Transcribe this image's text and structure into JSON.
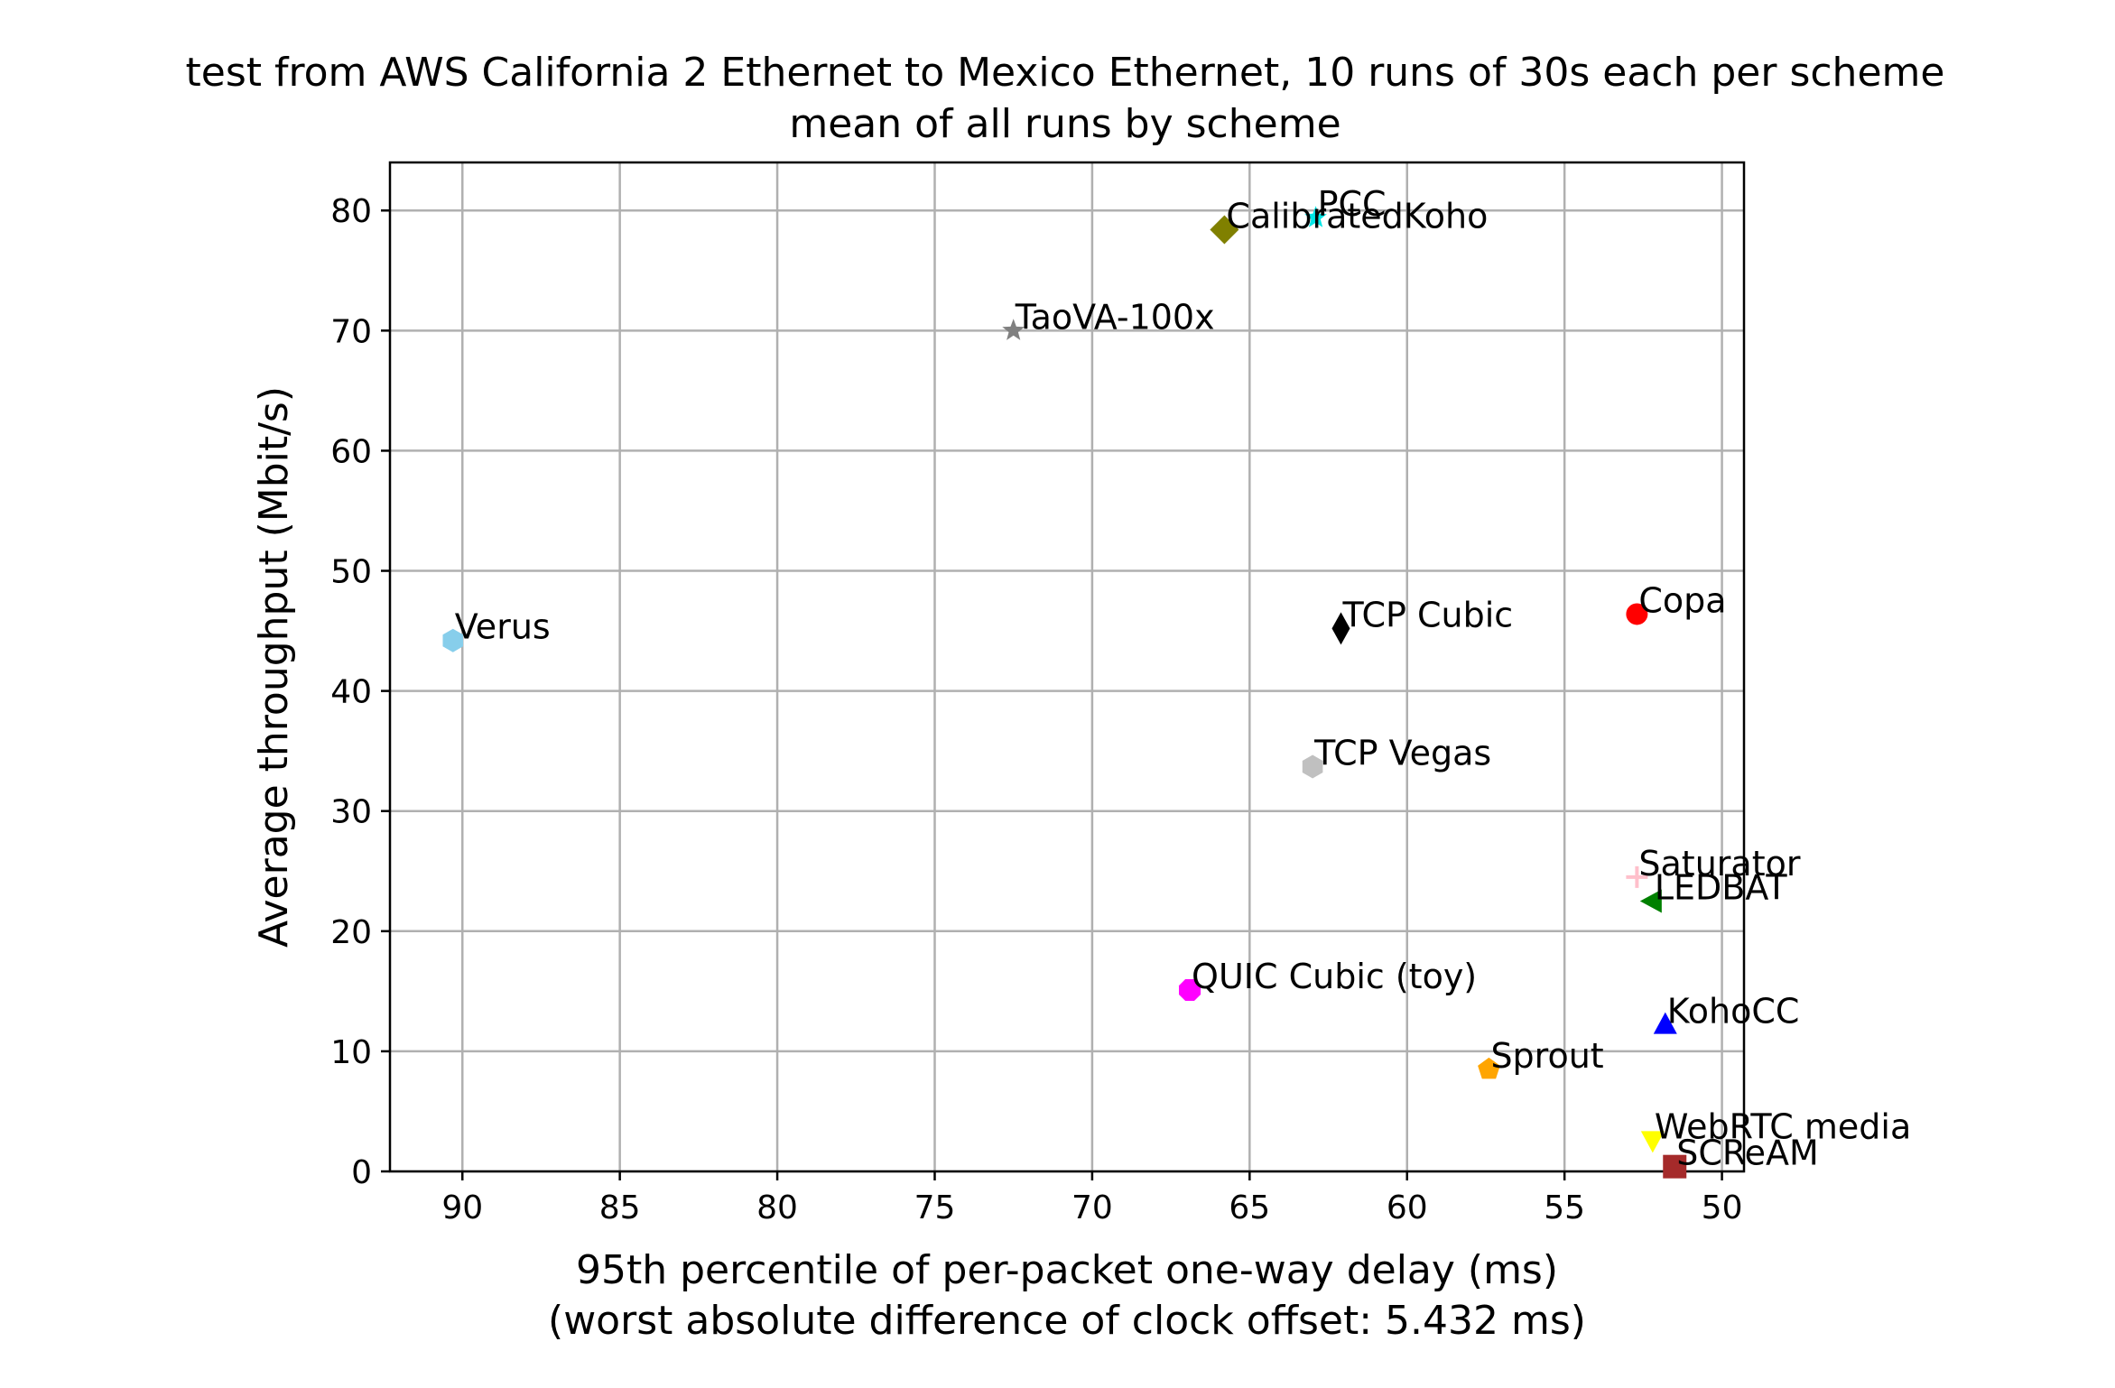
{
  "chart_data": {
    "type": "scatter",
    "title": "test from AWS California 2 Ethernet to Mexico Ethernet, 10 runs of 30s each per scheme",
    "subtitle": "mean of all runs by scheme",
    "xlabel": "95th percentile of per-packet one-way delay (ms)",
    "xlabel2": "(worst absolute difference of clock offset: 5.432 ms)",
    "ylabel": "Average throughput (Mbit/s)",
    "xlim": [
      92.3,
      49.3
    ],
    "x_inverted": true,
    "ylim": [
      0,
      84
    ],
    "xticks": [
      90,
      85,
      80,
      75,
      70,
      65,
      60,
      55,
      50
    ],
    "yticks": [
      0,
      10,
      20,
      30,
      40,
      50,
      60,
      70,
      80
    ],
    "grid": true,
    "points": [
      {
        "name": "PCC",
        "x": 62.9,
        "y": 79.4,
        "marker": "star",
        "color": "#00e5e5"
      },
      {
        "name": "CalibratedKoho",
        "x": 65.8,
        "y": 78.4,
        "marker": "diamond",
        "color": "#808000"
      },
      {
        "name": "TaoVA-100x",
        "x": 72.5,
        "y": 70.0,
        "marker": "star",
        "color": "#808080"
      },
      {
        "name": "Verus",
        "x": 90.3,
        "y": 44.2,
        "marker": "hexagon",
        "color": "#87ceeb"
      },
      {
        "name": "TCP Cubic",
        "x": 62.1,
        "y": 45.2,
        "marker": "thin_diamond",
        "color": "#000000"
      },
      {
        "name": "Copa",
        "x": 52.7,
        "y": 46.4,
        "marker": "circle",
        "color": "#ff0000"
      },
      {
        "name": "TCP Vegas",
        "x": 63.0,
        "y": 33.7,
        "marker": "hexagon",
        "color": "#c0c0c0"
      },
      {
        "name": "Saturator",
        "x": 52.7,
        "y": 24.5,
        "marker": "plus",
        "color": "#ffc0cb"
      },
      {
        "name": "LEDBAT",
        "x": 52.2,
        "y": 22.5,
        "marker": "triangle_left",
        "color": "#008000"
      },
      {
        "name": "QUIC Cubic (toy)",
        "x": 66.9,
        "y": 15.1,
        "marker": "octagon",
        "color": "#ff00ff"
      },
      {
        "name": "KohoCC",
        "x": 51.8,
        "y": 12.2,
        "marker": "triangle_up",
        "color": "#0000ff"
      },
      {
        "name": "Sprout",
        "x": 57.4,
        "y": 8.5,
        "marker": "pentagon",
        "color": "#ffa500"
      },
      {
        "name": "WebRTC media",
        "x": 52.2,
        "y": 2.6,
        "marker": "triangle_down",
        "color": "#ffff00"
      },
      {
        "name": "SCReAM",
        "x": 51.5,
        "y": 0.4,
        "marker": "square",
        "color": "#a52a2a"
      }
    ]
  }
}
